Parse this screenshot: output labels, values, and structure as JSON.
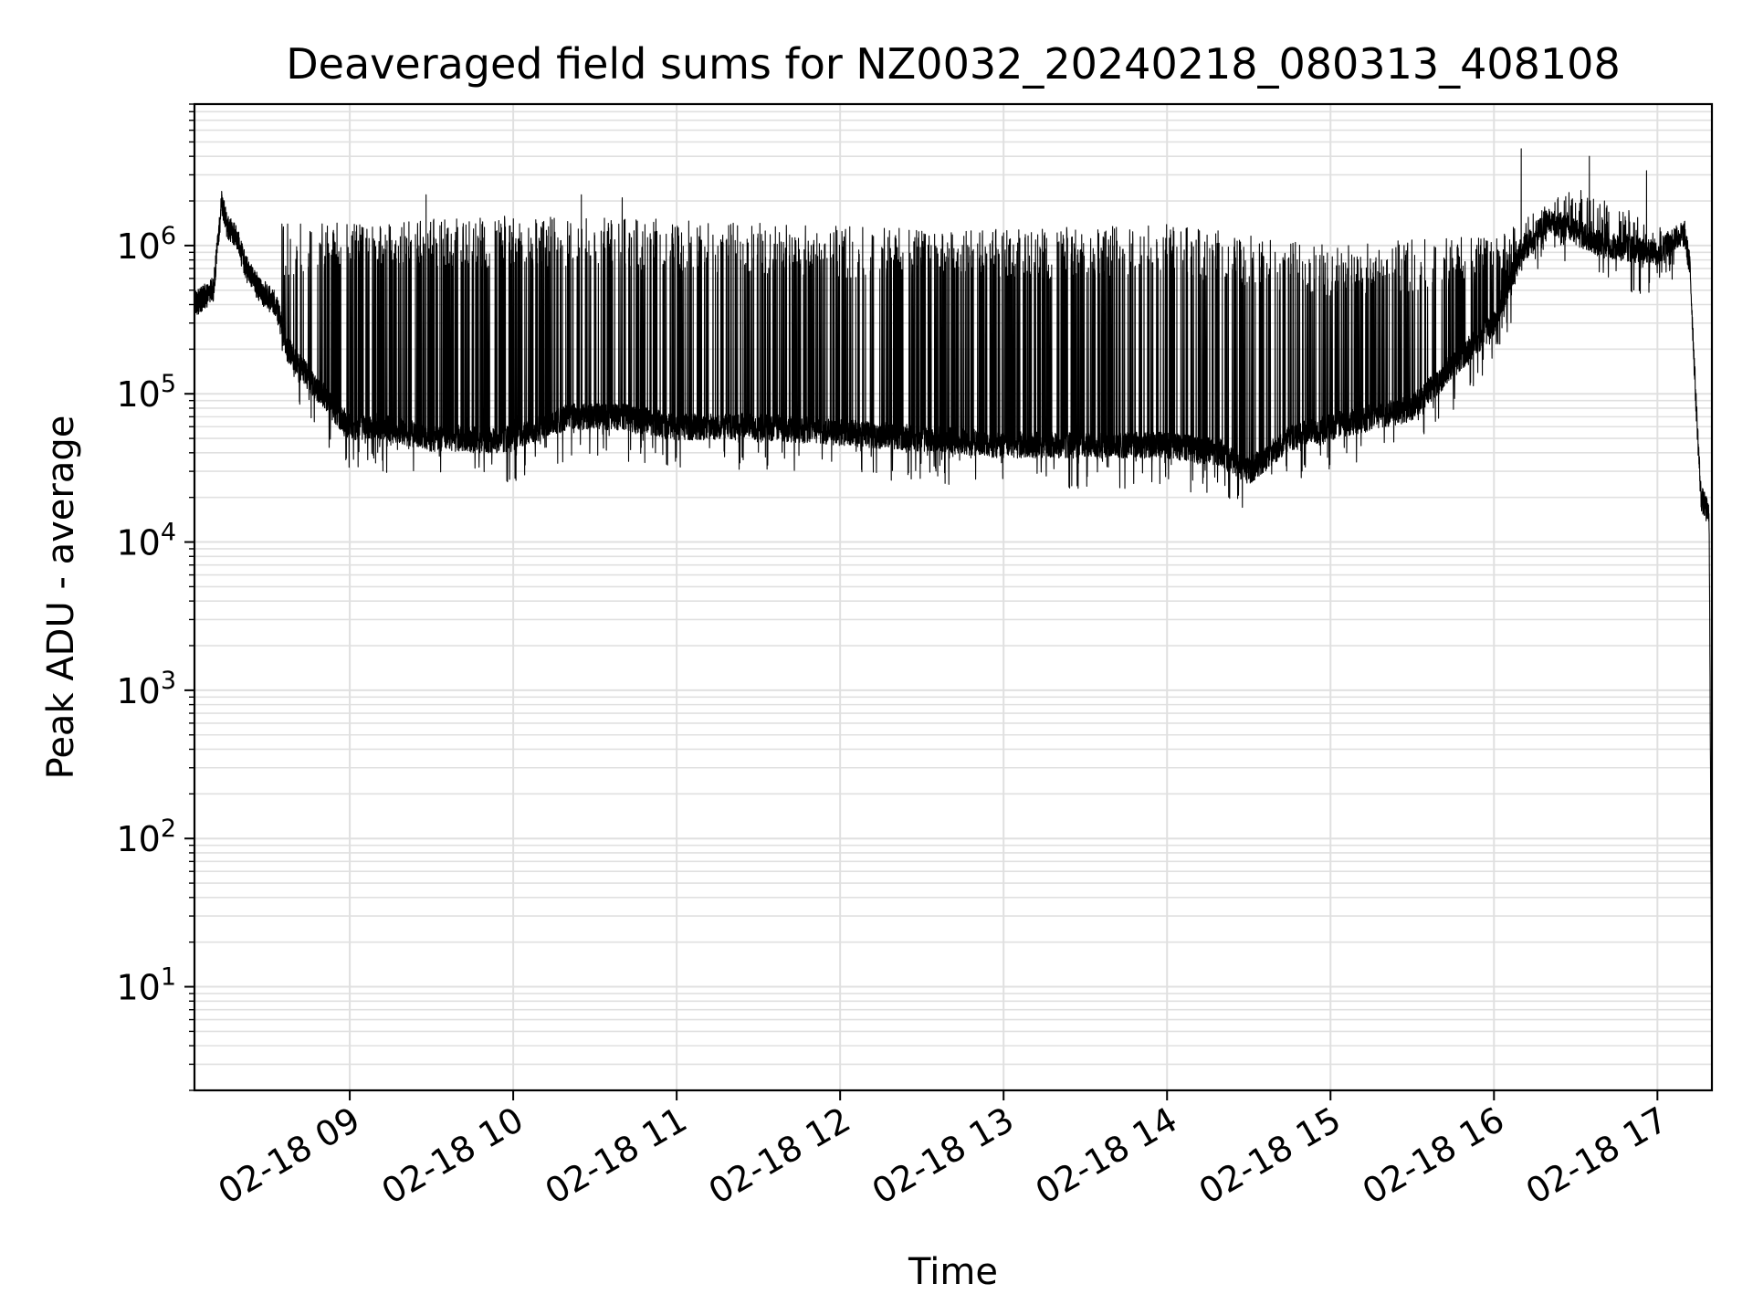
{
  "chart_data": {
    "type": "line",
    "title": "Deaveraged field sums for NZ0032_20240218_080313_408108",
    "xlabel": "Time",
    "ylabel": "Peak ADU - average",
    "yscale": "log",
    "ylim": [
      2,
      9000000
    ],
    "xlim": [
      "2024-02-18 08:03",
      "2024-02-18 17:20"
    ],
    "grid": true,
    "line_color": "#000000",
    "grid_color": "#e0e0e0",
    "x_ticks": [
      "02-18 09",
      "02-18 10",
      "02-18 11",
      "02-18 12",
      "02-18 13",
      "02-18 14",
      "02-18 15",
      "02-18 16",
      "02-18 17"
    ],
    "y_ticks": [
      {
        "value": 10,
        "base": "10",
        "exp": "1"
      },
      {
        "value": 100,
        "base": "10",
        "exp": "2"
      },
      {
        "value": 1000,
        "base": "10",
        "exp": "3"
      },
      {
        "value": 10000,
        "base": "10",
        "exp": "4"
      },
      {
        "value": 100000,
        "base": "10",
        "exp": "5"
      },
      {
        "value": 1000000,
        "base": "10",
        "exp": "6"
      }
    ],
    "series": [
      {
        "points": [
          [
            "08:03",
            400000
          ],
          [
            "08:10",
            500000
          ],
          [
            "08:13",
            2000000
          ],
          [
            "08:15",
            1350000
          ],
          [
            "08:18",
            1200000
          ],
          [
            "08:22",
            700000
          ],
          [
            "08:27",
            500000
          ],
          [
            "08:33",
            400000
          ],
          [
            "08:37",
            200000
          ],
          [
            "08:42",
            150000
          ],
          [
            "08:48",
            110000
          ],
          [
            "08:55",
            75000
          ],
          [
            "09:00",
            60000
          ],
          [
            "09:10",
            60000
          ],
          [
            "09:20",
            55000
          ],
          [
            "09:30",
            50000
          ],
          [
            "09:40",
            50000
          ],
          [
            "09:50",
            48000
          ],
          [
            "10:00",
            50000
          ],
          [
            "10:20",
            70000
          ],
          [
            "10:40",
            70000
          ],
          [
            "11:00",
            60000
          ],
          [
            "11:30",
            60000
          ],
          [
            "12:00",
            55000
          ],
          [
            "12:30",
            50000
          ],
          [
            "13:00",
            45000
          ],
          [
            "13:30",
            45000
          ],
          [
            "14:00",
            45000
          ],
          [
            "14:20",
            40000
          ],
          [
            "14:30",
            30000
          ],
          [
            "14:45",
            50000
          ],
          [
            "15:00",
            60000
          ],
          [
            "15:30",
            80000
          ],
          [
            "16:00",
            300000
          ],
          [
            "16:10",
            900000
          ],
          [
            "16:20",
            1500000
          ],
          [
            "16:40",
            1000000
          ],
          [
            "17:00",
            900000
          ],
          [
            "17:06",
            1100000
          ],
          [
            "17:10",
            1200000
          ],
          [
            "17:12",
            700000
          ],
          [
            "17:14",
            100000
          ],
          [
            "17:16",
            20000
          ],
          [
            "17:19",
            15000
          ],
          [
            "17:20",
            4
          ]
        ],
        "spike_envelope": {
          "upper": [
            [
              "08:35",
              1400000
            ],
            [
              "10:00",
              1600000
            ],
            [
              "11:00",
              1500000
            ],
            [
              "12:00",
              1350000
            ],
            [
              "13:00",
              1300000
            ],
            [
              "14:00",
              1400000
            ],
            [
              "15:00",
              1000000
            ],
            [
              "16:00",
              1200000
            ],
            [
              "16:30",
              2500000
            ],
            [
              "17:05",
              1300000
            ]
          ],
          "peaks": [
            [
              "08:13",
              2300000
            ],
            [
              "09:28",
              2200000
            ],
            [
              "10:25",
              2200000
            ],
            [
              "10:40",
              2100000
            ],
            [
              "16:10",
              4500000
            ],
            [
              "16:35",
              4000000
            ],
            [
              "16:56",
              3200000
            ]
          ]
        }
      }
    ]
  }
}
